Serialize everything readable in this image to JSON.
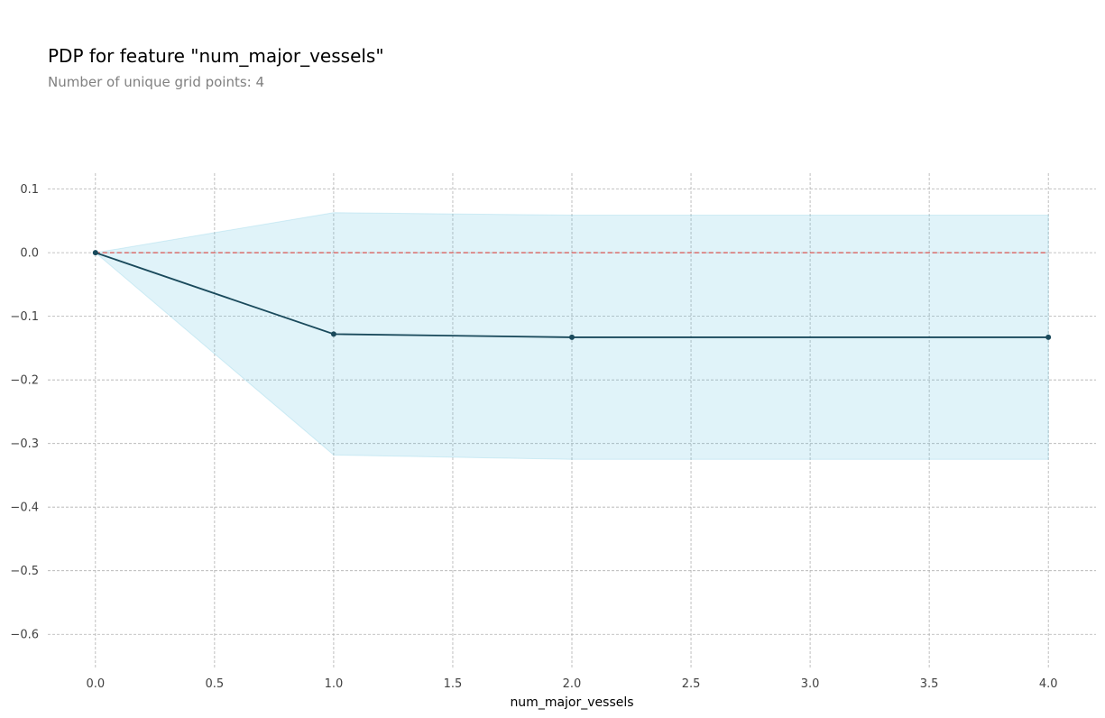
{
  "chart_data": {
    "type": "line",
    "title": "PDP for feature \"num_major_vessels\"",
    "subtitle": "Number of unique grid points: 4",
    "xlabel": "num_major_vessels",
    "ylabel": "",
    "xlim": [
      -0.2,
      4.2
    ],
    "ylim": [
      -0.655,
      0.125
    ],
    "xticks": [
      0.0,
      0.5,
      1.0,
      1.5,
      2.0,
      2.5,
      3.0,
      3.5,
      4.0
    ],
    "xtick_labels": [
      "0.0",
      "0.5",
      "1.0",
      "1.5",
      "2.0",
      "2.5",
      "3.0",
      "3.5",
      "4.0"
    ],
    "yticks": [
      0.1,
      0.0,
      -0.1,
      -0.2,
      -0.3,
      -0.4,
      -0.5,
      -0.6
    ],
    "ytick_labels": [
      "0.1",
      "0.0",
      "−0.1",
      "−0.2",
      "−0.3",
      "−0.4",
      "−0.5",
      "−0.6"
    ],
    "grid": true,
    "x": [
      0,
      1,
      2,
      3,
      4
    ],
    "series": [
      {
        "values": [
          0.0,
          -0.128,
          -0.133,
          -0.133,
          -0.133
        ],
        "color": "#1a4a5c"
      }
    ],
    "band": {
      "upper": [
        0.0,
        0.063,
        0.059,
        0.059,
        0.059
      ],
      "lower": [
        0.0,
        -0.318,
        -0.325,
        -0.325,
        -0.325
      ],
      "color": "#66c2e0"
    },
    "baseline": {
      "value": 0.0,
      "color": "#d9534f"
    },
    "markers_at": [
      0,
      1,
      2,
      4
    ]
  }
}
